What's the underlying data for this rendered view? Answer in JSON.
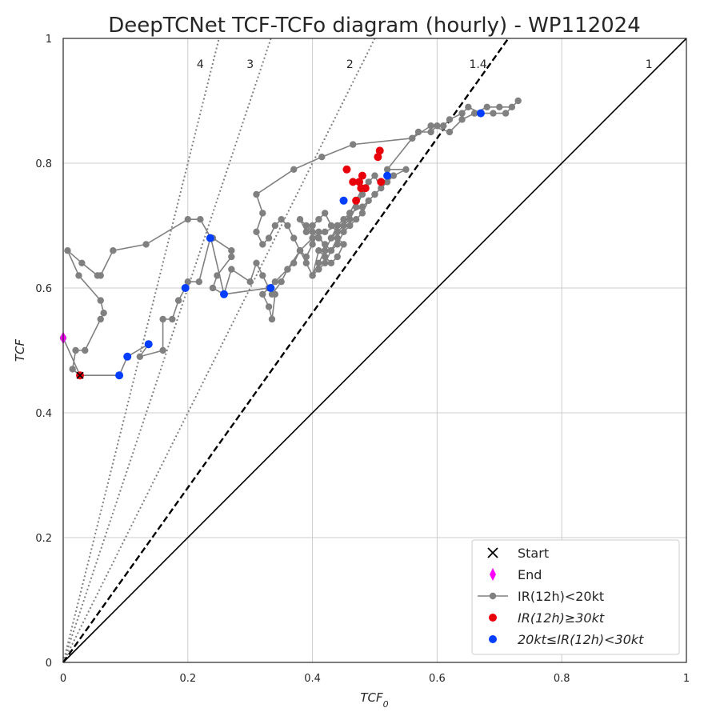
{
  "chart_data": {
    "type": "line",
    "title": "DeepTCNet TCF-TCFo diagram (hourly) - WP112024",
    "xlabel": "TCF",
    "xlabel_sub": "0",
    "ylabel": "TCF",
    "xlim": [
      0,
      1
    ],
    "ylim": [
      0,
      1
    ],
    "xticks": [
      "0",
      "0.2",
      "0.4",
      "0.6",
      "0.8",
      "1"
    ],
    "yticks": [
      "0",
      "0.2",
      "0.4",
      "0.6",
      "0.8",
      "1"
    ],
    "grid": true,
    "legend_position": "lower-right",
    "ratio_lines": [
      {
        "label": "4",
        "slope": 4,
        "style": "dotted"
      },
      {
        "label": "3",
        "slope": 3,
        "style": "dotted"
      },
      {
        "label": "2",
        "slope": 2,
        "style": "dotted"
      },
      {
        "label": "1.4",
        "slope": 1.4,
        "style": "dashed"
      },
      {
        "label": "1",
        "slope": 1,
        "style": "solid"
      }
    ],
    "legend": [
      {
        "label": "Start",
        "marker": "x",
        "color": "#000000"
      },
      {
        "label": "End",
        "marker": "diamond",
        "color": "#ff00ff"
      },
      {
        "label": "IR(12h)<20kt",
        "marker": "line-dot",
        "color": "#808080"
      },
      {
        "label": "IR(12h)≥30kt",
        "marker": "dot",
        "color": "#e8000b",
        "italic": true
      },
      {
        "label": "20kt≤IR(12h)<30kt",
        "marker": "dot",
        "color": "#023eff",
        "italic": true
      }
    ],
    "series": [
      {
        "name": "IR(12h)<20kt",
        "color": "#808080",
        "points": [
          [
            0.027,
            0.46
          ],
          [
            0.09,
            0.46
          ],
          [
            0.103,
            0.49
          ],
          [
            0.137,
            0.51
          ],
          [
            0.123,
            0.49
          ],
          [
            0.16,
            0.5
          ],
          [
            0.16,
            0.55
          ],
          [
            0.175,
            0.55
          ],
          [
            0.185,
            0.58
          ],
          [
            0.196,
            0.6
          ],
          [
            0.2,
            0.61
          ],
          [
            0.218,
            0.61
          ],
          [
            0.236,
            0.68
          ],
          [
            0.24,
            0.68
          ],
          [
            0.27,
            0.66
          ],
          [
            0.27,
            0.65
          ],
          [
            0.247,
            0.62
          ],
          [
            0.24,
            0.6
          ],
          [
            0.258,
            0.59
          ],
          [
            0.27,
            0.63
          ],
          [
            0.3,
            0.61
          ],
          [
            0.31,
            0.64
          ],
          [
            0.32,
            0.62
          ],
          [
            0.33,
            0.6
          ],
          [
            0.335,
            0.59
          ],
          [
            0.35,
            0.61
          ],
          [
            0.36,
            0.63
          ],
          [
            0.37,
            0.64
          ],
          [
            0.38,
            0.66
          ],
          [
            0.39,
            0.65
          ],
          [
            0.4,
            0.67
          ],
          [
            0.41,
            0.69
          ],
          [
            0.42,
            0.66
          ],
          [
            0.43,
            0.68
          ],
          [
            0.44,
            0.69
          ],
          [
            0.45,
            0.7
          ],
          [
            0.46,
            0.72
          ],
          [
            0.47,
            0.74
          ],
          [
            0.48,
            0.75
          ],
          [
            0.47,
            0.73
          ],
          [
            0.46,
            0.71
          ],
          [
            0.45,
            0.7
          ],
          [
            0.44,
            0.69
          ],
          [
            0.43,
            0.7
          ],
          [
            0.42,
            0.72
          ],
          [
            0.41,
            0.71
          ],
          [
            0.4,
            0.7
          ],
          [
            0.39,
            0.69
          ],
          [
            0.38,
            0.71
          ],
          [
            0.39,
            0.7
          ],
          [
            0.4,
            0.69
          ],
          [
            0.41,
            0.68
          ],
          [
            0.42,
            0.67
          ],
          [
            0.43,
            0.66
          ],
          [
            0.44,
            0.68
          ],
          [
            0.45,
            0.67
          ],
          [
            0.44,
            0.65
          ],
          [
            0.43,
            0.64
          ],
          [
            0.42,
            0.65
          ],
          [
            0.41,
            0.66
          ],
          [
            0.4,
            0.62
          ],
          [
            0.41,
            0.64
          ],
          [
            0.42,
            0.66
          ],
          [
            0.43,
            0.68
          ],
          [
            0.44,
            0.7
          ],
          [
            0.45,
            0.71
          ],
          [
            0.46,
            0.72
          ],
          [
            0.47,
            0.74
          ],
          [
            0.48,
            0.76
          ],
          [
            0.49,
            0.77
          ],
          [
            0.5,
            0.78
          ],
          [
            0.51,
            0.76
          ],
          [
            0.5,
            0.75
          ],
          [
            0.49,
            0.74
          ],
          [
            0.48,
            0.72
          ],
          [
            0.47,
            0.71
          ],
          [
            0.46,
            0.7
          ],
          [
            0.45,
            0.69
          ],
          [
            0.44,
            0.67
          ],
          [
            0.43,
            0.66
          ],
          [
            0.42,
            0.64
          ],
          [
            0.41,
            0.63
          ],
          [
            0.4,
            0.62
          ],
          [
            0.39,
            0.64
          ],
          [
            0.38,
            0.66
          ],
          [
            0.37,
            0.68
          ],
          [
            0.36,
            0.7
          ],
          [
            0.35,
            0.71
          ],
          [
            0.34,
            0.7
          ],
          [
            0.33,
            0.68
          ],
          [
            0.32,
            0.67
          ],
          [
            0.31,
            0.69
          ],
          [
            0.32,
            0.72
          ],
          [
            0.31,
            0.75
          ],
          [
            0.37,
            0.79
          ],
          [
            0.415,
            0.81
          ],
          [
            0.465,
            0.83
          ],
          [
            0.56,
            0.84
          ],
          [
            0.59,
            0.86
          ],
          [
            0.62,
            0.85
          ],
          [
            0.64,
            0.87
          ],
          [
            0.66,
            0.88
          ],
          [
            0.68,
            0.89
          ],
          [
            0.7,
            0.89
          ],
          [
            0.72,
            0.89
          ],
          [
            0.73,
            0.9
          ],
          [
            0.71,
            0.88
          ],
          [
            0.69,
            0.88
          ],
          [
            0.67,
            0.88
          ],
          [
            0.65,
            0.89
          ],
          [
            0.64,
            0.88
          ],
          [
            0.62,
            0.87
          ],
          [
            0.61,
            0.86
          ],
          [
            0.6,
            0.86
          ],
          [
            0.59,
            0.85
          ],
          [
            0.57,
            0.85
          ],
          [
            0.56,
            0.84
          ],
          [
            0.52,
            0.79
          ],
          [
            0.55,
            0.79
          ],
          [
            0.53,
            0.78
          ],
          [
            0.52,
            0.77
          ],
          [
            0.5,
            0.75
          ],
          [
            0.48,
            0.73
          ],
          [
            0.46,
            0.72
          ],
          [
            0.44,
            0.7
          ],
          [
            0.42,
            0.69
          ],
          [
            0.4,
            0.68
          ],
          [
            0.38,
            0.66
          ],
          [
            0.36,
            0.63
          ],
          [
            0.34,
            0.61
          ],
          [
            0.32,
            0.59
          ],
          [
            0.33,
            0.57
          ],
          [
            0.335,
            0.55
          ],
          [
            0.34,
            0.59
          ],
          [
            0.33,
            0.6
          ],
          [
            0.258,
            0.59
          ],
          [
            0.237,
            0.68
          ],
          [
            0.22,
            0.71
          ],
          [
            0.2,
            0.71
          ],
          [
            0.133,
            0.67
          ],
          [
            0.08,
            0.66
          ],
          [
            0.06,
            0.62
          ],
          [
            0.055,
            0.62
          ],
          [
            0.03,
            0.64
          ],
          [
            0.007,
            0.66
          ],
          [
            0.025,
            0.62
          ],
          [
            0.06,
            0.58
          ],
          [
            0.065,
            0.56
          ],
          [
            0.06,
            0.55
          ],
          [
            0.035,
            0.5
          ],
          [
            0.02,
            0.5
          ],
          [
            0.015,
            0.47
          ],
          [
            0.027,
            0.46
          ],
          [
            0.0,
            0.52
          ]
        ]
      },
      {
        "name": "IR(12h)≥30kt",
        "color": "#e8000b",
        "points": [
          [
            0.027,
            0.46
          ],
          [
            0.455,
            0.79
          ],
          [
            0.465,
            0.77
          ],
          [
            0.47,
            0.74
          ],
          [
            0.475,
            0.77
          ],
          [
            0.48,
            0.78
          ],
          [
            0.485,
            0.76
          ],
          [
            0.505,
            0.81
          ],
          [
            0.508,
            0.82
          ],
          [
            0.51,
            0.77
          ],
          [
            0.478,
            0.76
          ]
        ]
      },
      {
        "name": "20kt≤IR(12h)<30kt",
        "color": "#023eff",
        "points": [
          [
            0.09,
            0.46
          ],
          [
            0.103,
            0.49
          ],
          [
            0.137,
            0.51
          ],
          [
            0.196,
            0.6
          ],
          [
            0.236,
            0.68
          ],
          [
            0.258,
            0.59
          ],
          [
            0.333,
            0.6
          ],
          [
            0.45,
            0.74
          ],
          [
            0.52,
            0.78
          ],
          [
            0.67,
            0.88
          ]
        ]
      },
      {
        "name": "Start",
        "color": "#000000",
        "points": [
          [
            0.027,
            0.46
          ]
        ]
      },
      {
        "name": "End",
        "color": "#ff00ff",
        "points": [
          [
            0.0,
            0.52
          ]
        ]
      }
    ]
  }
}
